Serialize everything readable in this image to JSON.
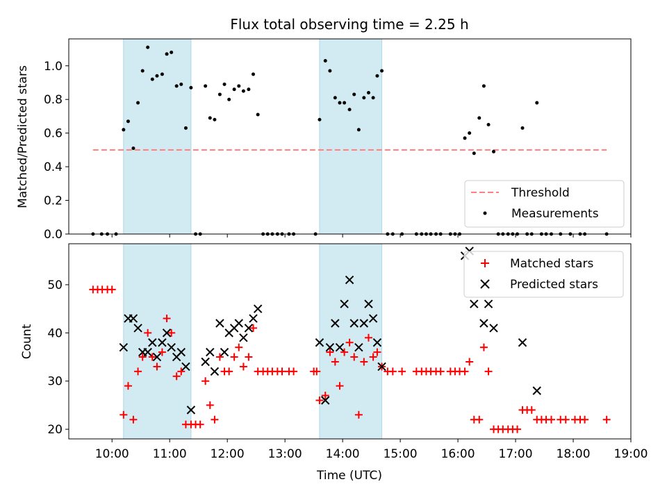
{
  "chart_data": [
    {
      "type": "scatter",
      "title": "Flux total observing time = 2.25 h",
      "ylabel": "Matched/Predicted stars",
      "xlabel": "",
      "ylim": [
        0,
        1.16
      ],
      "yticks": [
        0.0,
        0.2,
        0.4,
        0.6,
        0.8,
        1.0
      ],
      "ytick_labels": [
        "0.0",
        "0.2",
        "0.4",
        "0.6",
        "0.8",
        "1.0"
      ],
      "xlim": [
        9.25,
        19.0
      ],
      "grid": false,
      "legend_position": "lower-right",
      "shaded_intervals": [
        [
          10.2,
          11.37
        ],
        [
          13.6,
          14.68
        ]
      ],
      "threshold": {
        "name": "Threshold",
        "value": 0.5,
        "x_range": [
          9.67,
          18.58
        ],
        "color": "#ff7f7f"
      },
      "series": [
        {
          "name": "Measurements",
          "color": "#000000",
          "marker": "dot",
          "points": [
            [
              9.67,
              0
            ],
            [
              9.82,
              0
            ],
            [
              9.92,
              0
            ],
            [
              10.07,
              0
            ],
            [
              10.2,
              0.62
            ],
            [
              10.28,
              0.67
            ],
            [
              10.37,
              0.51
            ],
            [
              10.45,
              0.78
            ],
            [
              10.53,
              0.97
            ],
            [
              10.62,
              1.11
            ],
            [
              10.7,
              0.92
            ],
            [
              10.78,
              0.94
            ],
            [
              10.87,
              0.95
            ],
            [
              10.95,
              1.07
            ],
            [
              11.03,
              1.08
            ],
            [
              11.12,
              0.88
            ],
            [
              11.2,
              0.89
            ],
            [
              11.28,
              0.63
            ],
            [
              11.37,
              0.87
            ],
            [
              11.45,
              0
            ],
            [
              11.53,
              0
            ],
            [
              11.62,
              0.88
            ],
            [
              11.7,
              0.69
            ],
            [
              11.78,
              0.68
            ],
            [
              11.87,
              0.83
            ],
            [
              11.95,
              0.89
            ],
            [
              12.03,
              0.8
            ],
            [
              12.12,
              0.86
            ],
            [
              12.2,
              0.88
            ],
            [
              12.28,
              0.85
            ],
            [
              12.37,
              0.86
            ],
            [
              12.45,
              0.95
            ],
            [
              12.53,
              0.71
            ],
            [
              12.62,
              0
            ],
            [
              12.7,
              0
            ],
            [
              12.78,
              0
            ],
            [
              12.87,
              0
            ],
            [
              12.95,
              0
            ],
            [
              13.07,
              0
            ],
            [
              13.15,
              0
            ],
            [
              13.53,
              0
            ],
            [
              13.6,
              0.68
            ],
            [
              13.7,
              1.03
            ],
            [
              13.78,
              0.97
            ],
            [
              13.87,
              0.81
            ],
            [
              13.95,
              0.78
            ],
            [
              14.03,
              0.78
            ],
            [
              14.12,
              0.74
            ],
            [
              14.2,
              0.83
            ],
            [
              14.28,
              0.62
            ],
            [
              14.37,
              0.81
            ],
            [
              14.45,
              0.84
            ],
            [
              14.53,
              0.81
            ],
            [
              14.6,
              0.94
            ],
            [
              14.68,
              0.97
            ],
            [
              14.78,
              0
            ],
            [
              14.87,
              0
            ],
            [
              15.03,
              0
            ],
            [
              15.28,
              0
            ],
            [
              15.37,
              0
            ],
            [
              15.45,
              0
            ],
            [
              15.53,
              0
            ],
            [
              15.62,
              0
            ],
            [
              15.7,
              0
            ],
            [
              15.87,
              0
            ],
            [
              15.95,
              0
            ],
            [
              16.03,
              0
            ],
            [
              16.12,
              0.57
            ],
            [
              16.2,
              0.6
            ],
            [
              16.28,
              0.48
            ],
            [
              16.37,
              0.69
            ],
            [
              16.45,
              0.88
            ],
            [
              16.53,
              0.65
            ],
            [
              16.62,
              0.49
            ],
            [
              16.7,
              0
            ],
            [
              16.78,
              0
            ],
            [
              16.87,
              0
            ],
            [
              16.95,
              0
            ],
            [
              17.03,
              0
            ],
            [
              17.12,
              0.63
            ],
            [
              17.2,
              0
            ],
            [
              17.28,
              0
            ],
            [
              17.37,
              0.78
            ],
            [
              17.45,
              0
            ],
            [
              17.53,
              0
            ],
            [
              17.62,
              0
            ],
            [
              17.78,
              0
            ],
            [
              17.95,
              0
            ],
            [
              18.12,
              0
            ],
            [
              18.2,
              0
            ],
            [
              18.58,
              0
            ]
          ]
        }
      ]
    },
    {
      "type": "scatter",
      "title": "",
      "xlabel": "Time (UTC)",
      "ylabel": "Count",
      "ylim": [
        18,
        58.5
      ],
      "yticks": [
        20,
        30,
        40,
        50
      ],
      "ytick_labels": [
        "20",
        "30",
        "40",
        "50"
      ],
      "xlim": [
        9.25,
        19.0
      ],
      "xticks": [
        10,
        11,
        12,
        13,
        14,
        15,
        16,
        17,
        18,
        19
      ],
      "xtick_labels": [
        "10:00",
        "11:00",
        "12:00",
        "13:00",
        "14:00",
        "15:00",
        "16:00",
        "17:00",
        "18:00",
        "19:00"
      ],
      "grid": false,
      "legend_position": "upper-right",
      "shaded_intervals": [
        [
          10.2,
          11.37
        ],
        [
          13.6,
          14.68
        ]
      ],
      "series": [
        {
          "name": "Matched stars",
          "color": "#ff0000",
          "marker": "plus",
          "points": [
            [
              9.67,
              49
            ],
            [
              9.75,
              49
            ],
            [
              9.83,
              49
            ],
            [
              9.92,
              49
            ],
            [
              10.0,
              49
            ],
            [
              10.2,
              23
            ],
            [
              10.28,
              29
            ],
            [
              10.37,
              22
            ],
            [
              10.45,
              32
            ],
            [
              10.53,
              35
            ],
            [
              10.62,
              40
            ],
            [
              10.7,
              35
            ],
            [
              10.78,
              33
            ],
            [
              10.87,
              36
            ],
            [
              10.95,
              43
            ],
            [
              11.03,
              40
            ],
            [
              11.12,
              31
            ],
            [
              11.2,
              32
            ],
            [
              11.28,
              21
            ],
            [
              11.37,
              21
            ],
            [
              11.45,
              21
            ],
            [
              11.53,
              21
            ],
            [
              11.62,
              30
            ],
            [
              11.7,
              25
            ],
            [
              11.78,
              22
            ],
            [
              11.87,
              35
            ],
            [
              11.95,
              32
            ],
            [
              12.03,
              32
            ],
            [
              12.12,
              35
            ],
            [
              12.2,
              37
            ],
            [
              12.28,
              33
            ],
            [
              12.37,
              35
            ],
            [
              12.45,
              41
            ],
            [
              12.53,
              32
            ],
            [
              12.62,
              32
            ],
            [
              12.7,
              32
            ],
            [
              12.78,
              32
            ],
            [
              12.87,
              32
            ],
            [
              12.95,
              32
            ],
            [
              13.07,
              32
            ],
            [
              13.15,
              32
            ],
            [
              13.5,
              32
            ],
            [
              13.55,
              32
            ],
            [
              13.6,
              26
            ],
            [
              13.7,
              27
            ],
            [
              13.78,
              36
            ],
            [
              13.87,
              34
            ],
            [
              13.95,
              29
            ],
            [
              14.03,
              36
            ],
            [
              14.12,
              38
            ],
            [
              14.2,
              35
            ],
            [
              14.28,
              23
            ],
            [
              14.37,
              34
            ],
            [
              14.45,
              39
            ],
            [
              14.53,
              35
            ],
            [
              14.6,
              36
            ],
            [
              14.68,
              33
            ],
            [
              14.78,
              32
            ],
            [
              14.87,
              32
            ],
            [
              15.03,
              32
            ],
            [
              15.28,
              32
            ],
            [
              15.37,
              32
            ],
            [
              15.45,
              32
            ],
            [
              15.53,
              32
            ],
            [
              15.62,
              32
            ],
            [
              15.7,
              32
            ],
            [
              15.87,
              32
            ],
            [
              15.95,
              32
            ],
            [
              16.03,
              32
            ],
            [
              16.12,
              32
            ],
            [
              16.2,
              34
            ],
            [
              16.28,
              22
            ],
            [
              16.37,
              22
            ],
            [
              16.45,
              37
            ],
            [
              16.53,
              32
            ],
            [
              16.62,
              20
            ],
            [
              16.7,
              20
            ],
            [
              16.78,
              20
            ],
            [
              16.87,
              20
            ],
            [
              16.95,
              20
            ],
            [
              17.03,
              20
            ],
            [
              17.12,
              24
            ],
            [
              17.2,
              24
            ],
            [
              17.28,
              24
            ],
            [
              17.37,
              22
            ],
            [
              17.45,
              22
            ],
            [
              17.53,
              22
            ],
            [
              17.62,
              22
            ],
            [
              17.78,
              22
            ],
            [
              17.87,
              22
            ],
            [
              18.03,
              22
            ],
            [
              18.12,
              22
            ],
            [
              18.2,
              22
            ],
            [
              18.58,
              22
            ]
          ]
        },
        {
          "name": "Predicted stars",
          "color": "#000000",
          "marker": "x",
          "points": [
            [
              10.2,
              37
            ],
            [
              10.28,
              43
            ],
            [
              10.37,
              43
            ],
            [
              10.45,
              41
            ],
            [
              10.53,
              36
            ],
            [
              10.62,
              36
            ],
            [
              10.7,
              38
            ],
            [
              10.78,
              35
            ],
            [
              10.87,
              38
            ],
            [
              10.95,
              40
            ],
            [
              11.03,
              37
            ],
            [
              11.12,
              35
            ],
            [
              11.2,
              36
            ],
            [
              11.28,
              33
            ],
            [
              11.37,
              24
            ],
            [
              11.62,
              34
            ],
            [
              11.7,
              36
            ],
            [
              11.78,
              32
            ],
            [
              11.87,
              42
            ],
            [
              11.95,
              36
            ],
            [
              12.03,
              40
            ],
            [
              12.12,
              41
            ],
            [
              12.2,
              42
            ],
            [
              12.28,
              39
            ],
            [
              12.37,
              41
            ],
            [
              12.45,
              43
            ],
            [
              12.53,
              45
            ],
            [
              13.6,
              38
            ],
            [
              13.7,
              26
            ],
            [
              13.78,
              37
            ],
            [
              13.87,
              42
            ],
            [
              13.95,
              37
            ],
            [
              14.03,
              46
            ],
            [
              14.12,
              51
            ],
            [
              14.2,
              42
            ],
            [
              14.28,
              37
            ],
            [
              14.37,
              42
            ],
            [
              14.45,
              46
            ],
            [
              14.53,
              43
            ],
            [
              14.6,
              38
            ],
            [
              14.68,
              33
            ],
            [
              16.12,
              56
            ],
            [
              16.2,
              57
            ],
            [
              16.28,
              46
            ],
            [
              16.45,
              42
            ],
            [
              16.53,
              46
            ],
            [
              16.62,
              41
            ],
            [
              17.12,
              38
            ],
            [
              17.37,
              28
            ]
          ]
        }
      ]
    }
  ],
  "colors": {
    "shade": "#add8e6",
    "threshold": "#ff7f7f",
    "matched": "#ff0000",
    "predicted": "#000000",
    "measurements": "#000000"
  }
}
